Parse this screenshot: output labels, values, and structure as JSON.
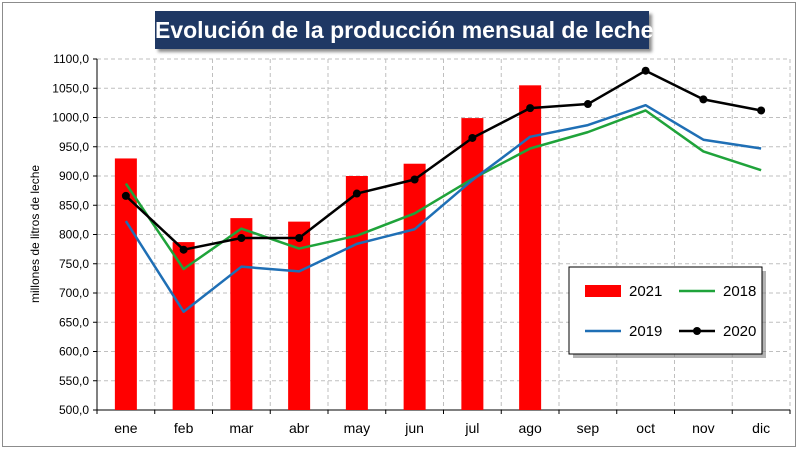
{
  "chart_data": {
    "type": "bar",
    "title": "Evolución de la producción mensual de leche",
    "xlabel": "",
    "ylabel": "millones de litros de leche",
    "ylim": [
      500,
      1100
    ],
    "ytick_step": 50,
    "ytick_labels": [
      "500,0",
      "550,0",
      "600,0",
      "650,0",
      "700,0",
      "750,0",
      "800,0",
      "850,0",
      "900,0",
      "950,0",
      "1000,0",
      "1050,0",
      "1100,0"
    ],
    "grid": true,
    "legend_placement": "bottom-right",
    "categories": [
      "ene",
      "feb",
      "mar",
      "abr",
      "may",
      "jun",
      "jul",
      "ago",
      "sep",
      "oct",
      "nov",
      "dic"
    ],
    "series": [
      {
        "name": "2021",
        "type": "bar",
        "color": "#ff0000",
        "values": [
          930,
          787,
          828,
          822,
          900,
          921,
          999,
          1055,
          null,
          null,
          null,
          null
        ]
      },
      {
        "name": "2018",
        "type": "line",
        "color": "#1fa33a",
        "values": [
          887,
          741,
          810,
          776,
          798,
          836,
          895,
          947,
          975,
          1012,
          942,
          910
        ]
      },
      {
        "name": "2019",
        "type": "line",
        "color": "#1f6fb5",
        "values": [
          823,
          668,
          745,
          737,
          784,
          809,
          893,
          967,
          987,
          1021,
          962,
          947
        ]
      },
      {
        "name": "2020",
        "type": "line",
        "color": "#000000",
        "markers": true,
        "values": [
          866,
          774,
          794,
          794,
          870,
          894,
          965,
          1016,
          1023,
          1080,
          1031,
          1012
        ]
      }
    ]
  }
}
